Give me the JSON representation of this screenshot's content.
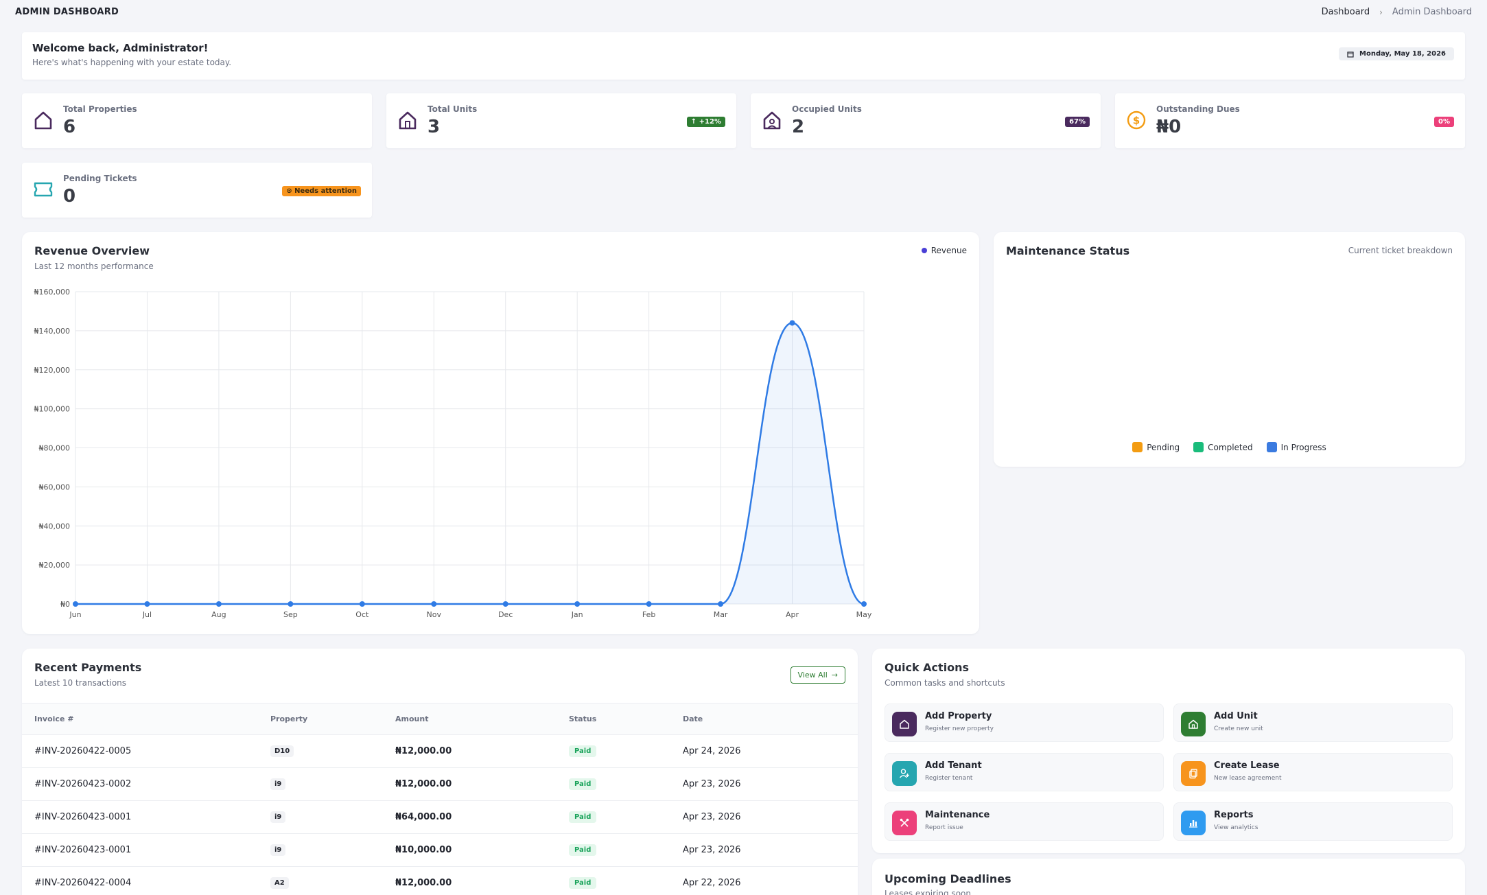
{
  "header": {
    "title": "ADMIN DASHBOARD",
    "breadcrumb": [
      "Dashboard",
      "Admin Dashboard"
    ]
  },
  "welcome": {
    "title": "Welcome back, Administrator!",
    "subtitle": "Here's what's happening with your estate today.",
    "date": "Monday, May 18, 2026"
  },
  "stats": [
    {
      "label": "Total Properties",
      "value": "6",
      "icon": "house-icon",
      "color": "#4a2a5e"
    },
    {
      "label": "Total Units",
      "value": "3",
      "icon": "house-icon",
      "color": "#4a2a5e",
      "badge": "+12%",
      "badge_color": "#2e7d32"
    },
    {
      "label": "Occupied Units",
      "value": "2",
      "icon": "house-user-icon",
      "color": "#4a2a5e",
      "badge": "67%",
      "badge_color": "#4a2a5e"
    },
    {
      "label": "Outstanding Dues",
      "value": "₦0",
      "icon": "coin-icon",
      "color": "#f39c12",
      "badge": "0%",
      "badge_color": "#ec407a"
    },
    {
      "label": "Pending Tickets",
      "value": "0",
      "icon": "ticket-icon",
      "color": "#26a6b0",
      "badge": "Needs attention",
      "badge_color": "#f7941d"
    }
  ],
  "revenue": {
    "title": "Revenue Overview",
    "subtitle": "Last 12 months performance",
    "legend": "Revenue"
  },
  "chart_data": {
    "type": "line",
    "title": "Revenue Overview",
    "subtitle": "Last 12 months performance",
    "categories": [
      "Jun",
      "Jul",
      "Aug",
      "Sep",
      "Oct",
      "Nov",
      "Dec",
      "Jan",
      "Feb",
      "Mar",
      "Apr",
      "May"
    ],
    "series": [
      {
        "name": "Revenue",
        "values": [
          0,
          0,
          0,
          0,
          0,
          0,
          0,
          0,
          0,
          0,
          144000,
          0
        ],
        "color": "#2f7be5"
      }
    ],
    "ylim": [
      0,
      160000
    ],
    "yticks": [
      "₦0",
      "₦20,000",
      "₦40,000",
      "₦60,000",
      "₦80,000",
      "₦100,000",
      "₦120,000",
      "₦140,000",
      "₦160,000"
    ],
    "grid": true,
    "legend": "top-right",
    "fill": true
  },
  "maintenance": {
    "title": "Maintenance Status",
    "subtitle": "Current ticket breakdown",
    "legend": [
      {
        "label": "Pending",
        "color": "#f39c12"
      },
      {
        "label": "Completed",
        "color": "#1abc7b"
      },
      {
        "label": "In Progress",
        "color": "#3b7be0"
      }
    ]
  },
  "payments": {
    "title": "Recent Payments",
    "subtitle": "Latest 10 transactions",
    "view_all": "View All",
    "columns": [
      "Invoice #",
      "Property",
      "Amount",
      "Status",
      "Date"
    ],
    "rows": [
      {
        "invoice": "#INV-20260422-0005",
        "property": "D10",
        "amount": "₦12,000.00",
        "status": "Paid",
        "date": "Apr 24, 2026"
      },
      {
        "invoice": "#INV-20260423-0002",
        "property": "i9",
        "amount": "₦12,000.00",
        "status": "Paid",
        "date": "Apr 23, 2026"
      },
      {
        "invoice": "#INV-20260423-0001",
        "property": "i9",
        "amount": "₦64,000.00",
        "status": "Paid",
        "date": "Apr 23, 2026"
      },
      {
        "invoice": "#INV-20260423-0001",
        "property": "i9",
        "amount": "₦10,000.00",
        "status": "Paid",
        "date": "Apr 23, 2026"
      },
      {
        "invoice": "#INV-20260422-0004",
        "property": "A2",
        "amount": "₦12,000.00",
        "status": "Paid",
        "date": "Apr 22, 2026"
      }
    ]
  },
  "quick_actions": {
    "title": "Quick Actions",
    "subtitle": "Common tasks and shortcuts",
    "items": [
      {
        "title": "Add Property",
        "subtitle": "Register new property",
        "color": "#4a2a5e",
        "icon": "house-icon"
      },
      {
        "title": "Add Unit",
        "subtitle": "Create new unit",
        "color": "#2e7d32",
        "icon": "house-icon"
      },
      {
        "title": "Add Tenant",
        "subtitle": "Register tenant",
        "color": "#26a6b0",
        "icon": "user-plus-icon"
      },
      {
        "title": "Create Lease",
        "subtitle": "New lease agreement",
        "color": "#f7941d",
        "icon": "document-icon"
      },
      {
        "title": "Maintenance",
        "subtitle": "Report issue",
        "color": "#ec407a",
        "icon": "tools-icon"
      },
      {
        "title": "Reports",
        "subtitle": "View analytics",
        "color": "#2f9bf0",
        "icon": "bar-chart-icon"
      }
    ]
  },
  "deadlines": {
    "title": "Upcoming Deadlines",
    "subtitle": "Leases expiring soon"
  }
}
